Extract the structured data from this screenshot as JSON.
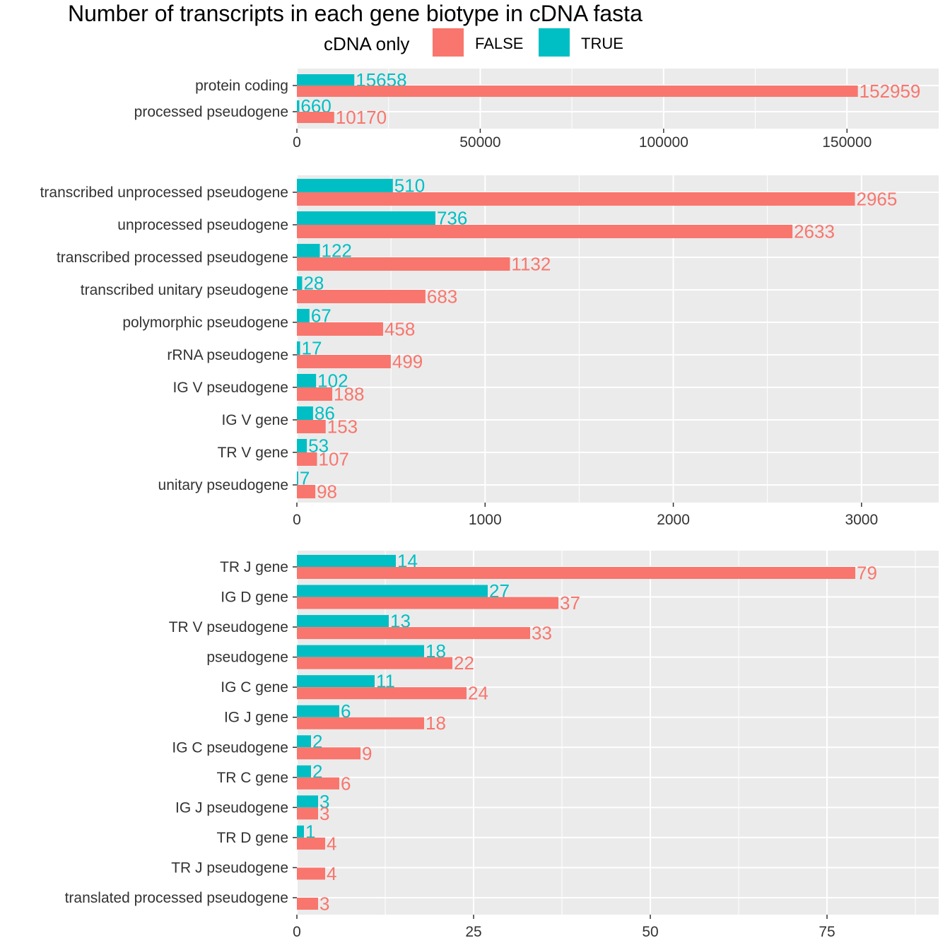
{
  "chart_data": {
    "type": "bar",
    "orientation": "horizontal",
    "title": "Number of transcripts in each gene biotype in cDNA fasta",
    "legend": {
      "title": "cDNA only",
      "placement": "top",
      "entries": [
        {
          "name": "FALSE",
          "color": "#F8766D"
        },
        {
          "name": "TRUE",
          "color": "#00BFC4"
        }
      ]
    },
    "grid": true,
    "panels": [
      {
        "categories": [
          "protein coding",
          "processed pseudogene"
        ],
        "series": [
          {
            "name": "TRUE",
            "color": "#00BFC4",
            "values": [
              15658,
              660
            ],
            "labels": [
              "15658",
              "660"
            ]
          },
          {
            "name": "FALSE",
            "color": "#F8766D",
            "values": [
              152959,
              10170
            ],
            "labels": [
              "152959",
              "10170"
            ]
          }
        ],
        "xlim": [
          0,
          175000
        ],
        "ticks": [
          0,
          50000,
          100000,
          150000
        ],
        "tick_labels": [
          "0",
          "50000",
          "100000",
          "150000"
        ]
      },
      {
        "categories": [
          "transcribed unprocessed pseudogene",
          "unprocessed pseudogene",
          "transcribed processed pseudogene",
          "transcribed unitary pseudogene",
          "polymorphic pseudogene",
          "rRNA pseudogene",
          "IG V pseudogene",
          "IG V gene",
          "TR V gene",
          "unitary pseudogene"
        ],
        "series": [
          {
            "name": "TRUE",
            "color": "#00BFC4",
            "values": [
              510,
              736,
              122,
              28,
              67,
              17,
              102,
              86,
              53,
              7
            ],
            "labels": [
              "510",
              "736",
              "122",
              "28",
              "67",
              "17",
              "102",
              "86",
              "53",
              "7"
            ]
          },
          {
            "name": "FALSE",
            "color": "#F8766D",
            "values": [
              2965,
              2633,
              1132,
              683,
              458,
              499,
              188,
              153,
              107,
              98
            ],
            "labels": [
              "2965",
              "2633",
              "1132",
              "683",
              "458",
              "499",
              "188",
              "153",
              "107",
              "98"
            ]
          }
        ],
        "xlim": [
          0,
          3410
        ],
        "ticks": [
          0,
          1000,
          2000,
          3000
        ],
        "tick_labels": [
          "0",
          "1000",
          "2000",
          "3000"
        ]
      },
      {
        "categories": [
          "TR J gene",
          "IG D gene",
          "TR V pseudogene",
          "pseudogene",
          "IG C gene",
          "IG J gene",
          "IG C pseudogene",
          "TR C gene",
          "IG J pseudogene",
          "TR D gene",
          "TR J pseudogene",
          "translated processed pseudogene"
        ],
        "series": [
          {
            "name": "TRUE",
            "color": "#00BFC4",
            "values": [
              14,
              27,
              13,
              18,
              11,
              6,
              2,
              2,
              3,
              1,
              null,
              null
            ],
            "labels": [
              "14",
              "27",
              "13",
              "18",
              "11",
              "6",
              "2",
              "2",
              "3",
              "1",
              "",
              ""
            ]
          },
          {
            "name": "FALSE",
            "color": "#F8766D",
            "values": [
              79,
              37,
              33,
              22,
              24,
              18,
              9,
              6,
              3,
              4,
              4,
              3
            ],
            "labels": [
              "79",
              "37",
              "33",
              "22",
              "24",
              "18",
              "9",
              "6",
              "3",
              "4",
              "4",
              "3"
            ]
          }
        ],
        "xlim": [
          0,
          90.8
        ],
        "ticks": [
          0,
          25,
          50,
          75
        ],
        "tick_labels": [
          "0",
          "25",
          "50",
          "75"
        ]
      }
    ]
  }
}
